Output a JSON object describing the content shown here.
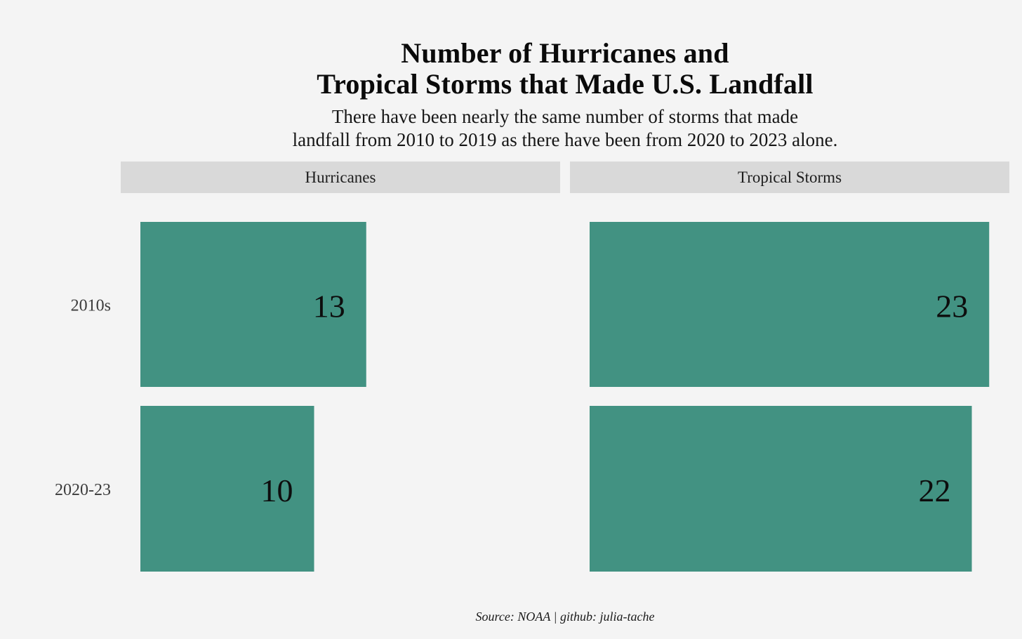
{
  "chart_data": {
    "type": "bar",
    "orientation": "horizontal",
    "title_lines": [
      "Number of Hurricanes and",
      "Tropical Storms that Made U.S. Landfall"
    ],
    "subtitle_lines": [
      "There have been nearly the same number of storms that made",
      "landfall from 2010 to 2019 as there have been from 2020 to 2023 alone."
    ],
    "categories": [
      "2010s",
      "2020-23"
    ],
    "facets": [
      {
        "name": "Hurricanes",
        "values": [
          13,
          10
        ]
      },
      {
        "name": "Tropical Storms",
        "values": [
          23,
          22
        ]
      }
    ],
    "xlim": [
      0,
      24
    ],
    "grid": false,
    "bar_color": "#429282",
    "source": "Source: NOAA | github: julia-tache"
  }
}
